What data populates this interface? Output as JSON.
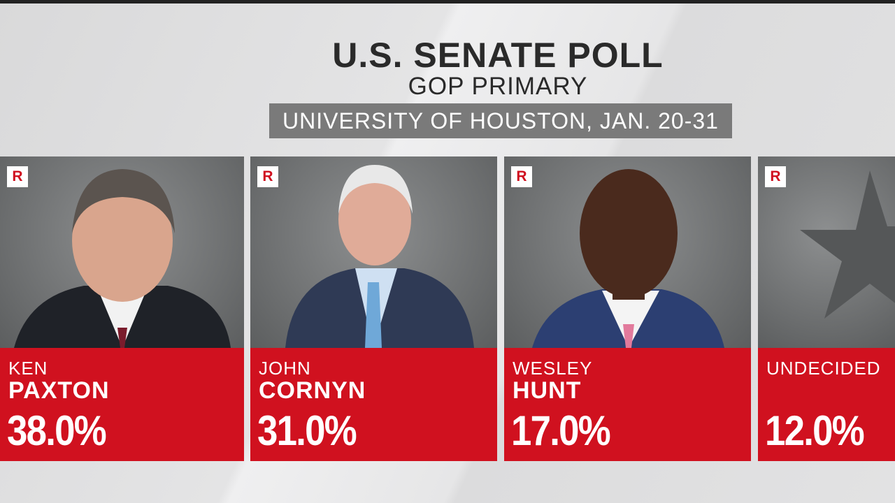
{
  "header": {
    "title": "U.S. SENATE POLL",
    "subtitle": "GOP PRIMARY",
    "source": "UNIVERSITY OF HOUSTON, JAN. 20-31"
  },
  "cards": [
    {
      "party": "R",
      "first_name": "KEN",
      "last_name": "PAXTON",
      "result": "38.0%"
    },
    {
      "party": "R",
      "first_name": "JOHN",
      "last_name": "CORNYN",
      "result": "31.0%"
    },
    {
      "party": "R",
      "first_name": "WESLEY",
      "last_name": "HUNT",
      "result": "17.0%"
    },
    {
      "party": "R",
      "first_name": "UNDECIDED",
      "result": "12.0%"
    }
  ]
}
